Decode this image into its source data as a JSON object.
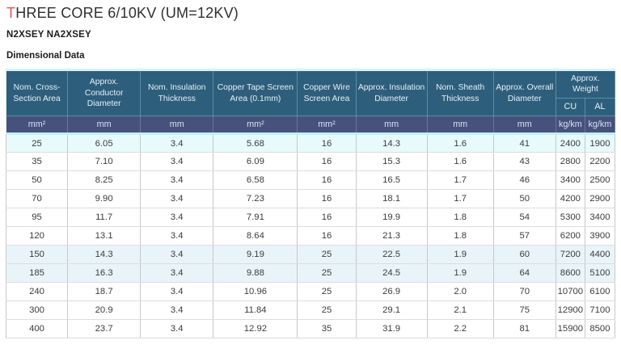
{
  "header": {
    "title_accent": "T",
    "title_rest": "HREE CORE 6/10KV (UM=12KV)",
    "product_codes": "N2XSEY NA2XSEY",
    "section_title": "Dimensional Data"
  },
  "table": {
    "columns": [
      {
        "label": "Nom. Cross-Section Area",
        "unit": "mm²"
      },
      {
        "label": "Approx. Conductor Diameter",
        "unit": "mm"
      },
      {
        "label": "Nom. Insulation Thickness",
        "unit": "mm"
      },
      {
        "label": "Copper Tape Screen Area (0.1mm)",
        "unit": "mm²"
      },
      {
        "label": "Copper Wire Screen Area",
        "unit": "mm²"
      },
      {
        "label": "Approx. Insulation Diameter",
        "unit": "mm"
      },
      {
        "label": "Nom. Sheath Thickness",
        "unit": "mm"
      },
      {
        "label": "Approx. Overall Diameter",
        "unit": "mm"
      }
    ],
    "weight_group": {
      "label": "Approx. Weight",
      "sub_columns": [
        {
          "label": "CU",
          "unit": "kg/km"
        },
        {
          "label": "AL",
          "unit": "kg/km"
        }
      ]
    },
    "rows": [
      [
        "25",
        "6.05",
        "3.4",
        "5.68",
        "16",
        "14.3",
        "1.6",
        "41",
        "2400",
        "1900"
      ],
      [
        "35",
        "7.10",
        "3.4",
        "6.09",
        "16",
        "15.3",
        "1.6",
        "43",
        "2800",
        "2200"
      ],
      [
        "50",
        "8.25",
        "3.4",
        "6.58",
        "16",
        "16.5",
        "1.7",
        "46",
        "3400",
        "2500"
      ],
      [
        "70",
        "9.90",
        "3.4",
        "7.23",
        "16",
        "18.1",
        "1.7",
        "50",
        "4200",
        "2900"
      ],
      [
        "95",
        "11.7",
        "3.4",
        "7.91",
        "16",
        "19.9",
        "1.8",
        "54",
        "5300",
        "3400"
      ],
      [
        "120",
        "13.1",
        "3.4",
        "8.64",
        "16",
        "21.3",
        "1.8",
        "57",
        "6200",
        "3900"
      ],
      [
        "150",
        "14.3",
        "3.4",
        "9.19",
        "25",
        "22.5",
        "1.9",
        "60",
        "7200",
        "4400"
      ],
      [
        "185",
        "16.3",
        "3.4",
        "9.88",
        "25",
        "24.5",
        "1.9",
        "64",
        "8600",
        "5100"
      ],
      [
        "240",
        "18.7",
        "3.4",
        "10.96",
        "25",
        "26.9",
        "2.0",
        "70",
        "10700",
        "6100"
      ],
      [
        "300",
        "20.9",
        "3.4",
        "11.84",
        "25",
        "29.1",
        "2.1",
        "75",
        "12900",
        "7100"
      ],
      [
        "400",
        "23.7",
        "3.4",
        "12.92",
        "35",
        "31.9",
        "2.2",
        "81",
        "15900",
        "8500"
      ]
    ],
    "highlighted_rows": [
      0,
      6,
      7
    ]
  },
  "colors": {
    "title_accent": "#ee4d5c",
    "header_bg": "#2d5f7c",
    "units_bg": "#46527c",
    "accent_line": "#c2f0f4",
    "row_highlight": "#e9f4fa"
  }
}
